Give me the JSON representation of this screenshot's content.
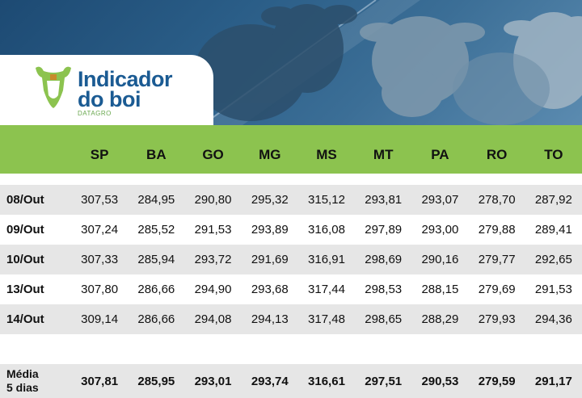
{
  "logo": {
    "line1": "Indicador",
    "line2": "do boi",
    "sub": "DATAGRO"
  },
  "columns": [
    "SP",
    "BA",
    "GO",
    "MG",
    "MS",
    "MT",
    "PA",
    "RO",
    "TO"
  ],
  "rows": [
    {
      "date": "08/Out",
      "values": [
        "307,53",
        "284,95",
        "290,80",
        "295,32",
        "315,12",
        "293,81",
        "293,07",
        "278,70",
        "287,92"
      ]
    },
    {
      "date": "09/Out",
      "values": [
        "307,24",
        "285,52",
        "291,53",
        "293,89",
        "316,08",
        "297,89",
        "293,00",
        "279,88",
        "289,41"
      ]
    },
    {
      "date": "10/Out",
      "values": [
        "307,33",
        "285,94",
        "293,72",
        "291,69",
        "316,91",
        "298,69",
        "290,16",
        "279,77",
        "292,65"
      ]
    },
    {
      "date": "13/Out",
      "values": [
        "307,80",
        "286,66",
        "294,90",
        "293,68",
        "317,44",
        "298,53",
        "288,15",
        "279,69",
        "291,53"
      ]
    },
    {
      "date": "14/Out",
      "values": [
        "309,14",
        "286,66",
        "294,08",
        "294,13",
        "317,48",
        "298,65",
        "288,29",
        "279,93",
        "294,36"
      ]
    }
  ],
  "average": {
    "label_line1": "Média",
    "label_line2": "5 dias",
    "values": [
      "307,81",
      "285,95",
      "293,01",
      "293,74",
      "316,61",
      "297,51",
      "290,53",
      "279,59",
      "291,17"
    ]
  },
  "colors": {
    "header_green": "#8cc34f",
    "row_grey": "#e6e6e6",
    "logo_blue": "#1b5b93",
    "logo_green": "#6aa84f"
  }
}
